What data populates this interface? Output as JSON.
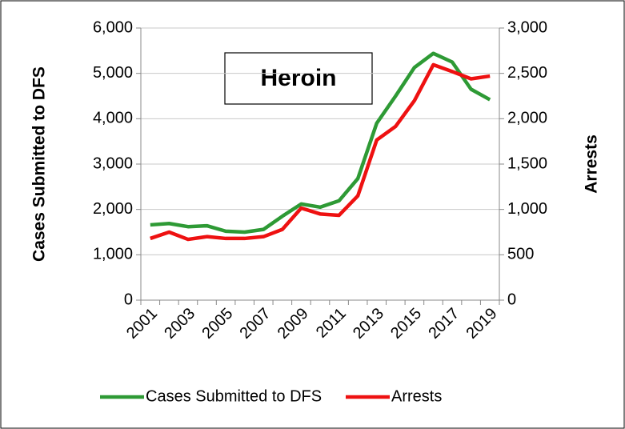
{
  "chart_data": {
    "type": "line",
    "title": "Heroin",
    "categories": [
      "2001",
      null,
      "2003",
      null,
      "2005",
      null,
      "2007",
      null,
      "2009",
      null,
      "2011",
      null,
      "2013",
      null,
      "2015",
      null,
      "2017",
      null,
      "2019"
    ],
    "y_label": "Cases Submitted to DFS",
    "y2_label": "Arrests",
    "ylim": [
      0,
      6000
    ],
    "yticks": [
      0,
      {
        "value": 1000,
        "label": "1,000"
      },
      {
        "value": 2000,
        "label": "2,000"
      },
      {
        "value": 3000,
        "label": "3,000"
      },
      {
        "value": 4000,
        "label": "4,000"
      },
      {
        "value": 5000,
        "label": "5,000"
      },
      {
        "value": 6000,
        "label": "6,000"
      }
    ],
    "y2lim": [
      0,
      3000
    ],
    "y2ticks": [
      0,
      500,
      {
        "value": 1000,
        "label": "1,000"
      },
      {
        "value": 1500,
        "label": "1,500"
      },
      {
        "value": 2000,
        "label": "2,000"
      },
      {
        "value": 2500,
        "label": "2,500"
      },
      {
        "value": 3000,
        "label": "3,000"
      }
    ],
    "grid": true,
    "legend": "bottom",
    "series": [
      {
        "name": "Cases Submitted to DFS",
        "color": "#2e9a35",
        "values": [
          1660,
          1690,
          1620,
          1640,
          1520,
          1500,
          1560,
          1850,
          2120,
          2050,
          2190,
          2680,
          3900,
          4500,
          5130,
          5440,
          5250,
          4650,
          4420
        ]
      },
      {
        "name": "Arrests",
        "color": "#ee1111",
        "axis": "y2",
        "values": [
          680,
          750,
          670,
          700,
          680,
          680,
          700,
          780,
          1015,
          950,
          935,
          1150,
          1765,
          1915,
          2200,
          2595,
          2520,
          2440,
          2470
        ]
      }
    ]
  }
}
